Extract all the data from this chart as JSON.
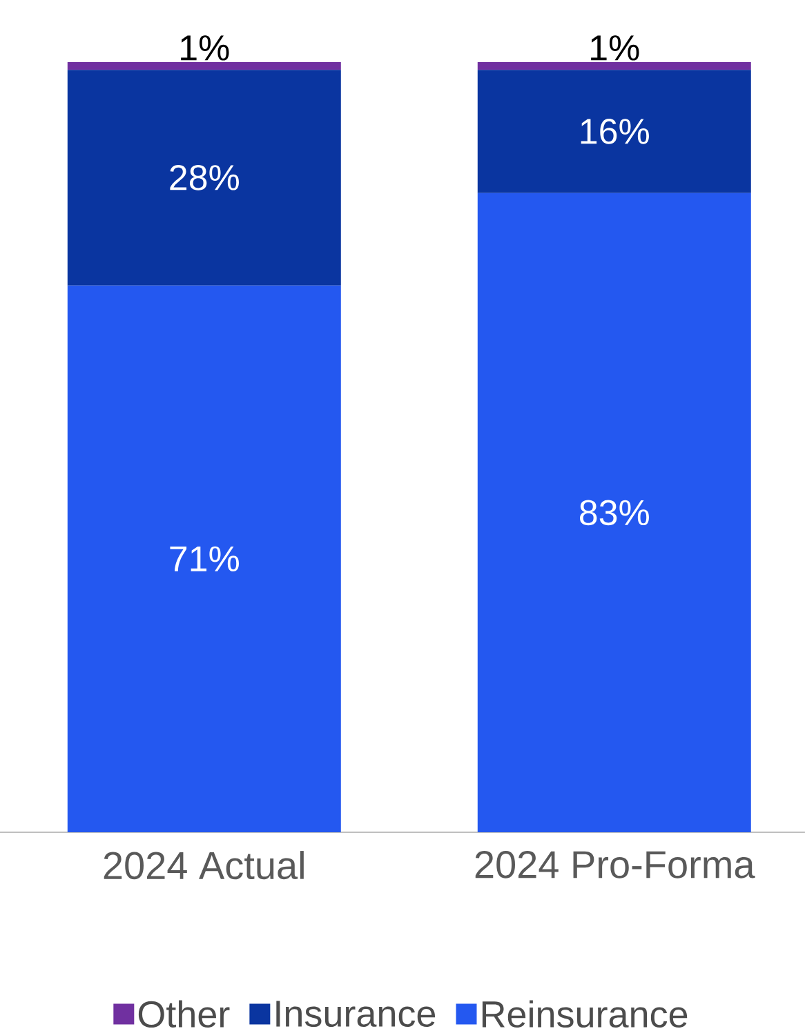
{
  "chart_data": {
    "type": "bar",
    "stacked": true,
    "categories": [
      "2024 Actual",
      "2024 Pro-Forma"
    ],
    "series": [
      {
        "name": "Reinsurance",
        "color": "#2458f0",
        "values": [
          71,
          83
        ],
        "value_labels": [
          "71%",
          "83%"
        ]
      },
      {
        "name": "Insurance",
        "color": "#0a35a0",
        "values": [
          28,
          16
        ],
        "value_labels": [
          "28%",
          "16%"
        ]
      },
      {
        "name": "Other",
        "color": "#7030a0",
        "values": [
          1,
          1
        ],
        "value_labels": [
          "1%",
          "1%"
        ]
      }
    ],
    "legend": "bottom"
  }
}
